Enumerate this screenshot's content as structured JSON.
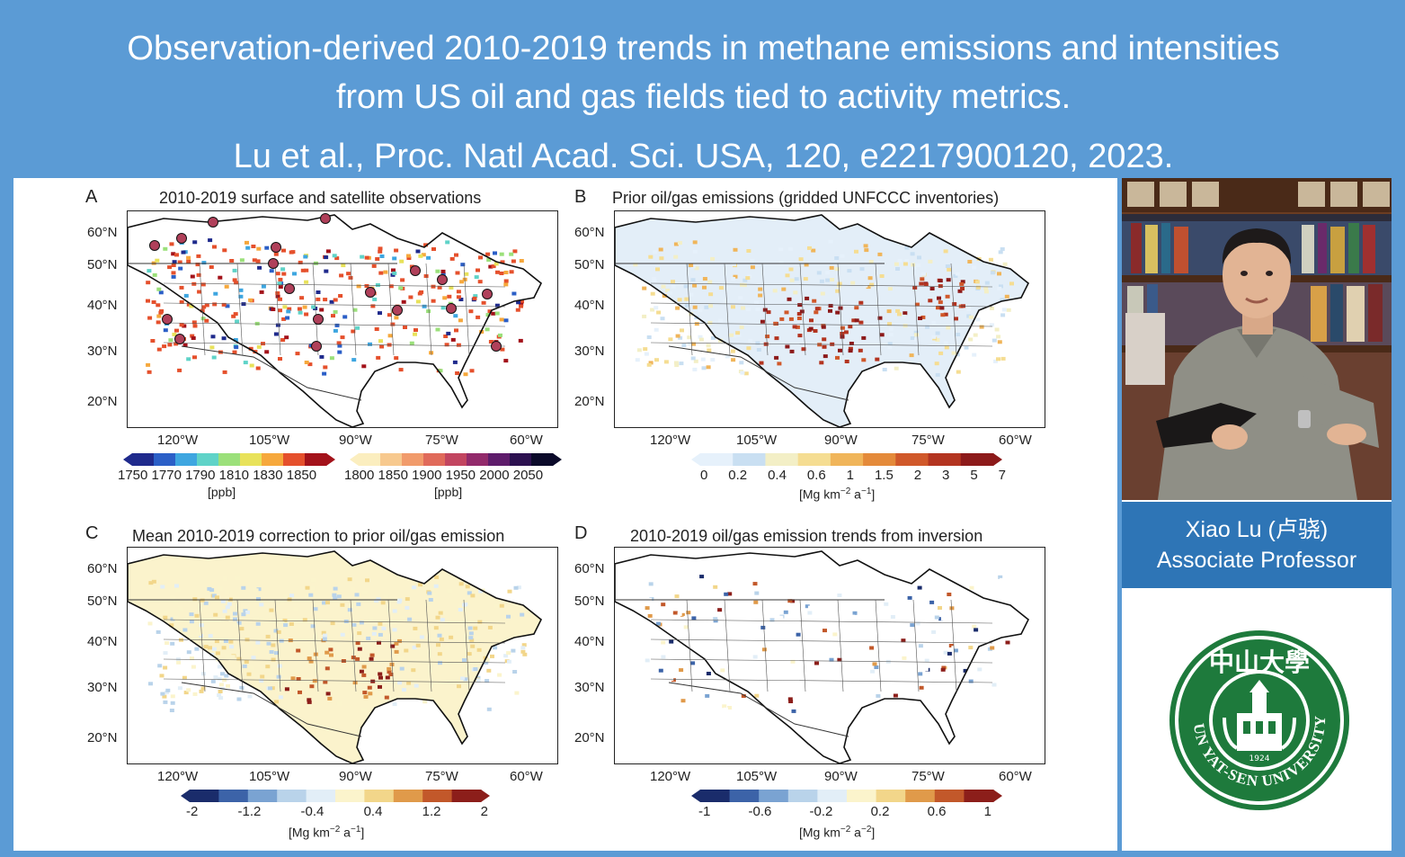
{
  "header": {
    "line1": "Observation-derived 2010-2019 trends in methane emissions and intensities",
    "line2": "from US oil and gas fields tied to activity metrics.",
    "citation": "Lu et al., Proc. Natl Acad. Sci. USA, 120, e2217900120, 2023."
  },
  "figure": {
    "panels": [
      {
        "letter": "A",
        "title": "2010-2019 surface and satellite observations"
      },
      {
        "letter": "B",
        "title": "Prior oil/gas emissions (gridded UNFCCC inventories)"
      },
      {
        "letter": "C",
        "title": "Mean 2010-2019 correction to prior oil/gas emission"
      },
      {
        "letter": "D",
        "title": "2010-2019 oil/gas emission trends from inversion"
      }
    ],
    "lat_ticks": [
      "60°N",
      "50°N",
      "40°N",
      "30°N",
      "20°N"
    ],
    "lon_ticks": [
      "120°W",
      "105°W",
      "90°W",
      "75°W",
      "60°W"
    ],
    "colorbars": {
      "a1": {
        "ticks": [
          "1750",
          "1770",
          "1790",
          "1810",
          "1830",
          "1850"
        ],
        "unit": "[ppb]"
      },
      "a2": {
        "ticks": [
          "1800",
          "1850",
          "1900",
          "1950",
          "2000",
          "2050"
        ],
        "unit": "[ppb]"
      },
      "b": {
        "ticks": [
          "0",
          "0.2",
          "0.4",
          "0.6",
          "1",
          "1.5",
          "2",
          "3",
          "5",
          "7"
        ],
        "unit_base": "[Mg km",
        "unit_exp1": "−2",
        "unit_mid": " a",
        "unit_exp2": "−1",
        "unit_end": "]"
      },
      "c": {
        "ticks": [
          "-2",
          "-1.2",
          "-0.4",
          "0.4",
          "1.2",
          "2"
        ],
        "unit_base": "[Mg km",
        "unit_exp1": "−2",
        "unit_mid": " a",
        "unit_exp2": "−1",
        "unit_end": "]"
      },
      "d": {
        "ticks": [
          "-1",
          "-0.6",
          "-0.2",
          "0.2",
          "0.6",
          "1"
        ],
        "unit_base": "[Mg km",
        "unit_exp1": "−2",
        "unit_mid": " a",
        "unit_exp2": "−2",
        "unit_end": "]"
      }
    }
  },
  "profile": {
    "name": "Xiao Lu (卢骁)",
    "role": "Associate Professor",
    "university_cn": "中山大學",
    "university_en": "SUN YAT-SEN UNIVERSITY",
    "founded": "1924"
  },
  "colors": {
    "frame": "#5b9bd5",
    "name_box": "#2e75b6",
    "logo_green": "#1e7a3c"
  }
}
